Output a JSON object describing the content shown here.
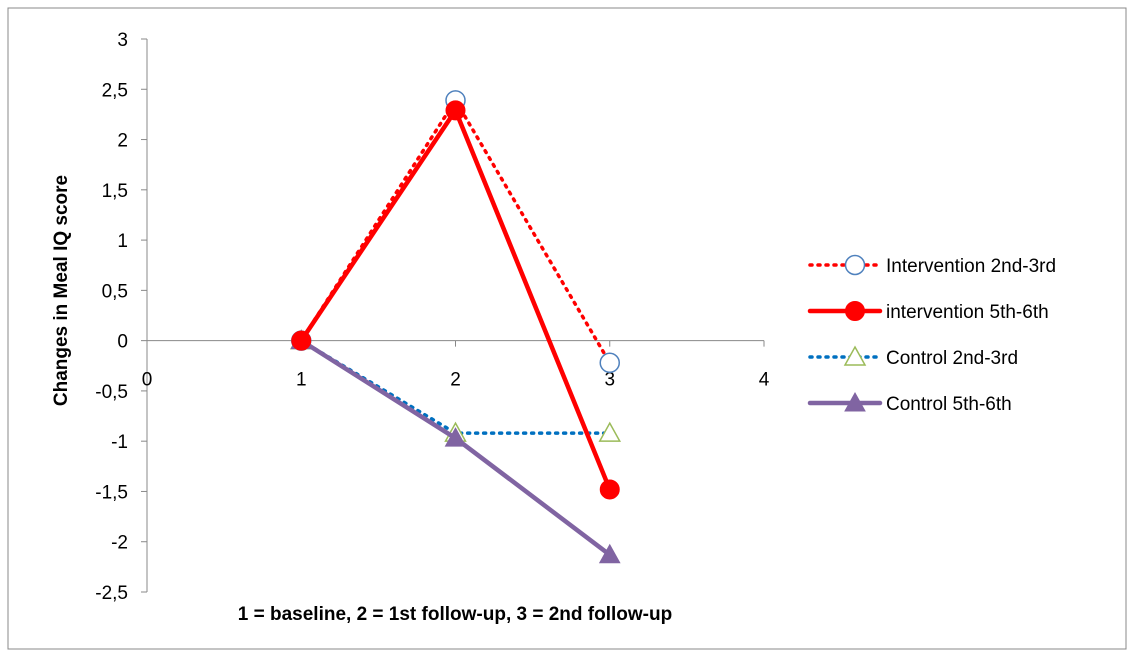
{
  "chart_data": {
    "type": "line",
    "title": "",
    "xlabel": "1 = baseline, 2 = 1st follow-up, 3 = 2nd follow-up",
    "ylabel": "Changes in Meal IQ score",
    "xlim": [
      0,
      4
    ],
    "ylim": [
      -2.5,
      3
    ],
    "x_ticks": [
      "0",
      "1",
      "2",
      "3",
      "4"
    ],
    "y_ticks": [
      "3",
      "2,5",
      "2",
      "1,5",
      "1",
      "0,5",
      "0",
      "-0,5",
      "-1",
      "-1,5",
      "-2",
      "-2,5"
    ],
    "x_tick_values": [
      0,
      1,
      2,
      3,
      4
    ],
    "y_tick_values": [
      3,
      2.5,
      2,
      1.5,
      1,
      0.5,
      0,
      -0.5,
      -1,
      -1.5,
      -2,
      -2.5
    ],
    "grid": false,
    "legend_position": "right",
    "series": [
      {
        "name": "Intervention 2nd-3rd",
        "x": [
          1,
          2,
          3
        ],
        "values": [
          0,
          2.39,
          -0.22
        ],
        "color": "#ff0000",
        "line_style": "dotted",
        "marker": "circle-open",
        "marker_color": "#4f81bd"
      },
      {
        "name": "intervention 5th-6th",
        "x": [
          1,
          2,
          3
        ],
        "values": [
          0,
          2.29,
          -1.48
        ],
        "color": "#ff0000",
        "line_style": "solid",
        "marker": "circle-filled",
        "marker_color": "#ff0000"
      },
      {
        "name": "Control 2nd-3rd",
        "x": [
          1,
          2,
          3
        ],
        "values": [
          0,
          -0.92,
          -0.92
        ],
        "color": "#0070c0",
        "line_style": "dotted",
        "marker": "triangle-open",
        "marker_color": "#9bbb59"
      },
      {
        "name": "Control 5th-6th",
        "x": [
          1,
          2,
          3
        ],
        "values": [
          0,
          -0.97,
          -2.13
        ],
        "color": "#8064a2",
        "line_style": "solid",
        "marker": "triangle-filled",
        "marker_color": "#8064a2"
      }
    ]
  }
}
